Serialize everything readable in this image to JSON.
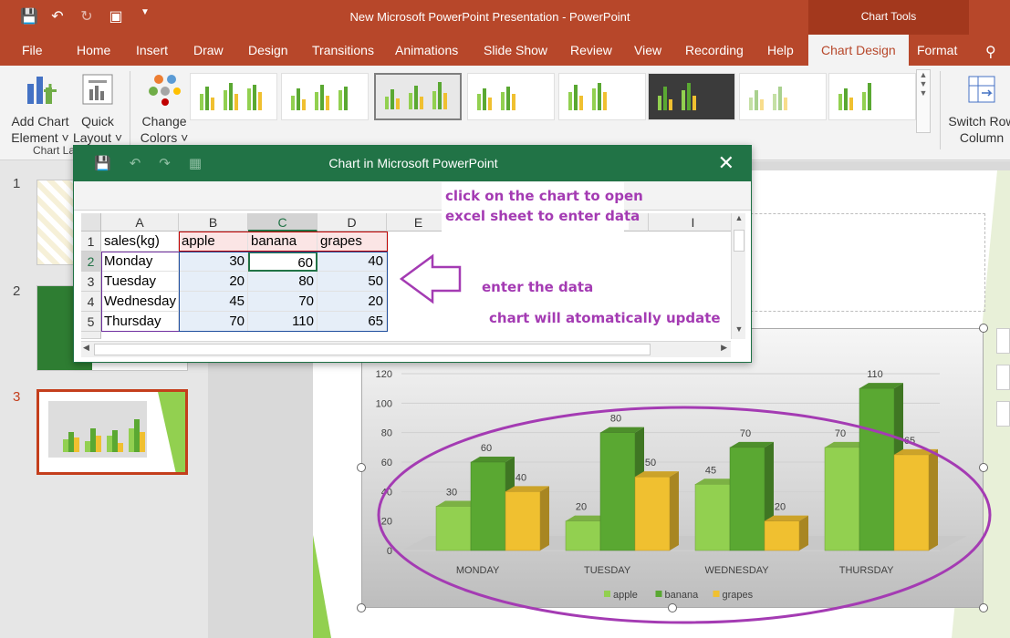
{
  "app": {
    "window_title": "New Microsoft PowerPoint Presentation  -  PowerPoint",
    "contextual_label": "Chart Tools"
  },
  "tabs": [
    "File",
    "Home",
    "Insert",
    "Draw",
    "Design",
    "Transitions",
    "Animations",
    "Slide Show",
    "Review",
    "View",
    "Recording",
    "Help",
    "Chart Design",
    "Format"
  ],
  "ribbon": {
    "add_chart_element": [
      "Add Chart",
      "Element ˅"
    ],
    "quick_layout": [
      "Quick",
      "Layout ˅"
    ],
    "group_chart_layouts": "Chart La",
    "change_colors": [
      "Change",
      "Colors ˅"
    ],
    "switch_row_column": [
      "Switch Row",
      "Column"
    ]
  },
  "slides": [
    "1",
    "2",
    "3"
  ],
  "excel": {
    "title": "Chart in Microsoft PowerPoint",
    "columns": [
      "A",
      "B",
      "C",
      "D",
      "E",
      "I"
    ],
    "row_numbers": [
      "1",
      "2",
      "3",
      "4",
      "5"
    ],
    "rows": [
      [
        "sales(kg)",
        "apple",
        "banana",
        "grapes"
      ],
      [
        "Monday",
        "30",
        "60",
        "40"
      ],
      [
        "Tuesday",
        "20",
        "80",
        "50"
      ],
      [
        "Wednesday",
        "45",
        "70",
        "20"
      ],
      [
        "Thursday",
        "70",
        "110",
        "65"
      ]
    ]
  },
  "annotations": {
    "click_chart": "click on the chart to open",
    "click_chart_2": "excel sheet to enter data",
    "enter_data": "enter the data",
    "auto_update": "chart will atomatically update"
  },
  "colors": {
    "ribbon_red": "#b7472a",
    "excel_green": "#217346",
    "annotation_purple": "#a43bb3",
    "apple": "#92d050",
    "banana": "#5aa832",
    "grapes": "#f0c030"
  },
  "chart_data": {
    "type": "bar",
    "categories": [
      "MONDAY",
      "TUESDAY",
      "WEDNESDAY",
      "THURSDAY"
    ],
    "series": [
      {
        "name": "apple",
        "values": [
          30,
          20,
          45,
          70
        ]
      },
      {
        "name": "banana",
        "values": [
          60,
          80,
          70,
          110
        ]
      },
      {
        "name": "grapes",
        "values": [
          40,
          50,
          20,
          65
        ]
      }
    ],
    "yticks": [
      "0",
      "20",
      "40",
      "60",
      "80",
      "100",
      "120"
    ],
    "ylim": [
      0,
      120
    ],
    "legend": "bottom",
    "style": "3d-column"
  }
}
